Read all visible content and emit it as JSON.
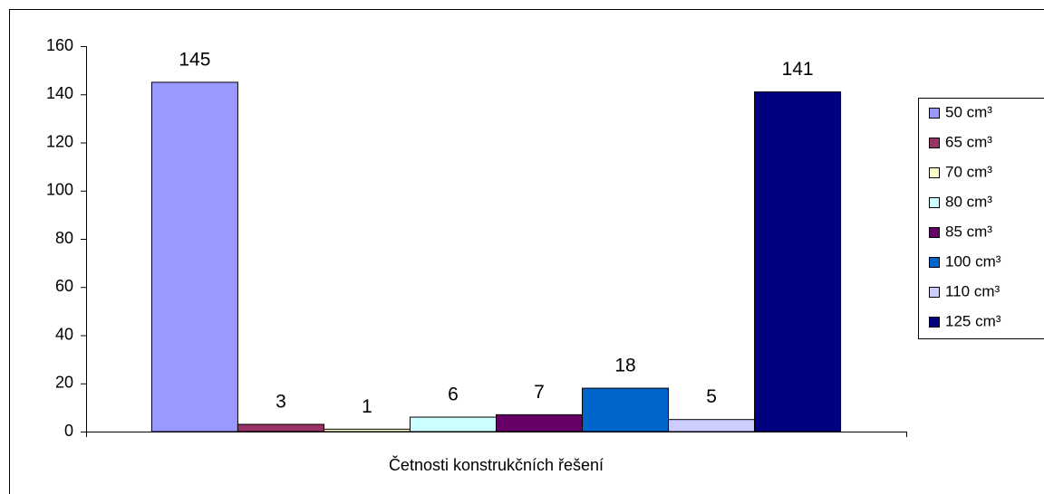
{
  "chart_data": {
    "type": "bar",
    "categories": [
      "Četnosti konstrukčních řešení"
    ],
    "series": [
      {
        "name": "50 cm³",
        "color": "#9999ff",
        "values": [
          145
        ]
      },
      {
        "name": "65 cm³",
        "color": "#993366",
        "values": [
          3
        ]
      },
      {
        "name": "70 cm³",
        "color": "#ffffcc",
        "values": [
          1
        ]
      },
      {
        "name": "80 cm³",
        "color": "#ccffff",
        "values": [
          6
        ]
      },
      {
        "name": "85 cm³",
        "color": "#660066",
        "values": [
          7
        ]
      },
      {
        "name": "100 cm³",
        "color": "#0066cc",
        "values": [
          18
        ]
      },
      {
        "name": "110 cm³",
        "color": "#ccccff",
        "values": [
          5
        ]
      },
      {
        "name": "125 cm³",
        "color": "#000080",
        "values": [
          141
        ]
      }
    ],
    "ylim": [
      0,
      160
    ],
    "yticks": [
      0,
      20,
      40,
      60,
      80,
      100,
      120,
      140,
      160
    ],
    "grid": false,
    "legend": "right"
  }
}
